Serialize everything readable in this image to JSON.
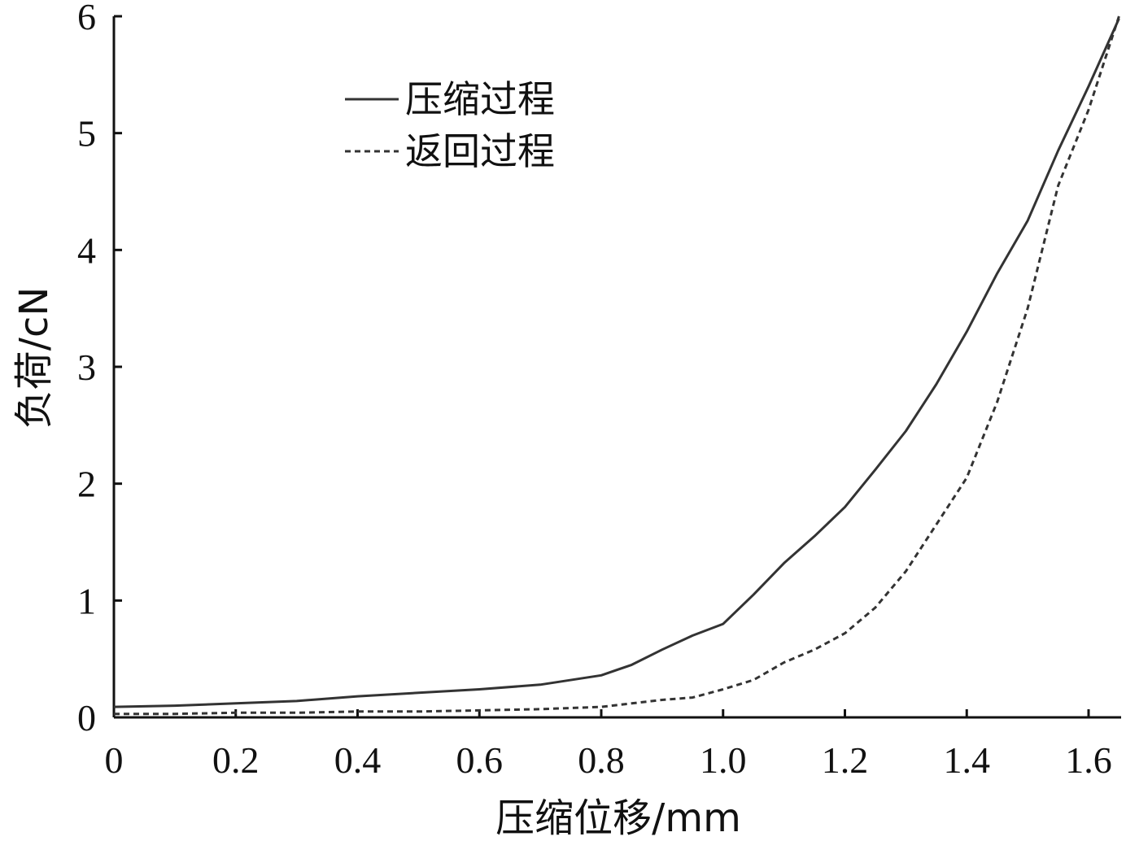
{
  "chart_data": {
    "type": "line",
    "title": "",
    "xlabel": "压缩位移/mm",
    "ylabel": "负荷/cN",
    "xlim": [
      0,
      1.65
    ],
    "ylim": [
      0,
      6
    ],
    "x_ticks": [
      "0",
      "0.2",
      "0.4",
      "0.6",
      "0.8",
      "1.0",
      "1.2",
      "1.4",
      "1.6"
    ],
    "y_ticks": [
      "0",
      "1",
      "2",
      "3",
      "4",
      "5",
      "6"
    ],
    "grid": false,
    "legend_position": "top-left",
    "series": [
      {
        "name": "压缩过程",
        "style": "solid",
        "color": "#333333",
        "x": [
          0,
          0.1,
          0.2,
          0.3,
          0.4,
          0.5,
          0.6,
          0.7,
          0.8,
          0.85,
          0.9,
          0.95,
          1.0,
          1.05,
          1.1,
          1.15,
          1.2,
          1.25,
          1.3,
          1.35,
          1.4,
          1.45,
          1.5,
          1.55,
          1.6,
          1.65
        ],
        "y": [
          0.09,
          0.1,
          0.12,
          0.14,
          0.18,
          0.21,
          0.24,
          0.28,
          0.36,
          0.45,
          0.58,
          0.7,
          0.8,
          1.05,
          1.32,
          1.55,
          1.8,
          2.12,
          2.45,
          2.85,
          3.3,
          3.8,
          4.25,
          4.85,
          5.4,
          5.98
        ]
      },
      {
        "name": "返回过程",
        "style": "dashed",
        "color": "#333333",
        "x": [
          0,
          0.1,
          0.2,
          0.3,
          0.4,
          0.5,
          0.6,
          0.7,
          0.8,
          0.85,
          0.9,
          0.95,
          1.0,
          1.05,
          1.1,
          1.15,
          1.2,
          1.25,
          1.3,
          1.35,
          1.4,
          1.45,
          1.5,
          1.55,
          1.6,
          1.65
        ],
        "y": [
          0.03,
          0.03,
          0.04,
          0.04,
          0.05,
          0.05,
          0.06,
          0.07,
          0.09,
          0.12,
          0.15,
          0.17,
          0.24,
          0.32,
          0.47,
          0.58,
          0.72,
          0.94,
          1.25,
          1.65,
          2.05,
          2.7,
          3.5,
          4.55,
          5.2,
          6.0
        ]
      }
    ]
  }
}
